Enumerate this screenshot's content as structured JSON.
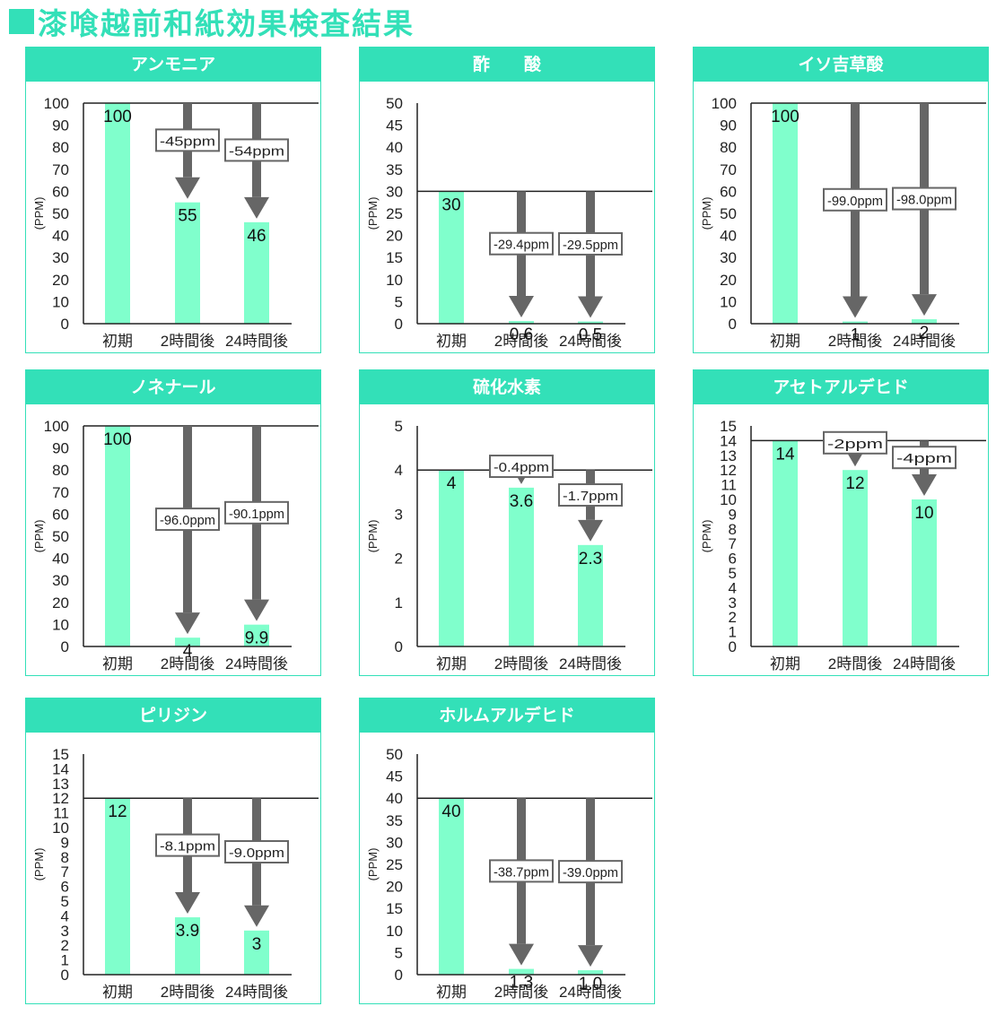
{
  "page_title": "漆喰越前和紙効果検査結果",
  "colors": {
    "accent": "#33e0b8",
    "bar": "#80ffcc",
    "arrow": "#666666",
    "label_border": "#666666"
  },
  "chart_data": [
    {
      "type": "bar",
      "title": "アンモニア",
      "ylabel": "(PPM)",
      "categories": [
        "初期",
        "2時間後",
        "24時間後"
      ],
      "values": [
        100,
        55,
        46
      ],
      "value_labels": [
        "100",
        "55",
        "46"
      ],
      "ylim": [
        0,
        100
      ],
      "yticks": [
        0,
        10,
        20,
        30,
        40,
        50,
        60,
        70,
        80,
        90,
        100
      ],
      "reduction_labels": [
        "-45ppm",
        "-54ppm"
      ]
    },
    {
      "type": "bar",
      "title": "酢　　酸",
      "ylabel": "(PPM)",
      "categories": [
        "初期",
        "2時間後",
        "24時間後"
      ],
      "values": [
        30,
        0.6,
        0.5
      ],
      "value_labels": [
        "30",
        "0.6",
        "0.5"
      ],
      "ylim": [
        0,
        50
      ],
      "yticks": [
        0,
        5,
        10,
        15,
        20,
        25,
        30,
        35,
        40,
        45,
        50
      ],
      "reduction_labels": [
        "-29.4ppm",
        "-29.5ppm"
      ]
    },
    {
      "type": "bar",
      "title": "イソ吉草酸",
      "ylabel": "(PPM)",
      "categories": [
        "初期",
        "2時間後",
        "24時間後"
      ],
      "values": [
        100,
        1,
        2
      ],
      "value_labels": [
        "100",
        "1",
        "2"
      ],
      "ylim": [
        0,
        100
      ],
      "yticks": [
        0,
        10,
        20,
        30,
        40,
        50,
        60,
        70,
        80,
        90,
        100
      ],
      "reduction_labels": [
        "-99.0ppm",
        "-98.0ppm"
      ]
    },
    {
      "type": "bar",
      "title": "ノネナール",
      "ylabel": "(PPM)",
      "categories": [
        "初期",
        "2時間後",
        "24時間後"
      ],
      "values": [
        100,
        4,
        9.9
      ],
      "value_labels": [
        "100",
        "4",
        "9.9"
      ],
      "ylim": [
        0,
        100
      ],
      "yticks": [
        0,
        10,
        20,
        30,
        40,
        50,
        60,
        70,
        80,
        90,
        100
      ],
      "reduction_labels": [
        "-96.0ppm",
        "-90.1ppm"
      ]
    },
    {
      "type": "bar",
      "title": "硫化水素",
      "ylabel": "(PPM)",
      "categories": [
        "初期",
        "2時間後",
        "24時間後"
      ],
      "values": [
        4,
        3.6,
        2.3
      ],
      "value_labels": [
        "4",
        "3.6",
        "2.3"
      ],
      "ylim": [
        0,
        5
      ],
      "yticks": [
        0,
        1,
        2,
        3,
        4,
        5
      ],
      "reduction_labels": [
        "-0.4ppm",
        "-1.7ppm"
      ]
    },
    {
      "type": "bar",
      "title": "アセトアルデヒド",
      "ylabel": "(PPM)",
      "categories": [
        "初期",
        "2時間後",
        "24時間後"
      ],
      "values": [
        14,
        12,
        10
      ],
      "value_labels": [
        "14",
        "12",
        "10"
      ],
      "ylim": [
        0,
        15
      ],
      "yticks": [
        0,
        1,
        2,
        3,
        4,
        5,
        6,
        7,
        8,
        9,
        10,
        11,
        12,
        13,
        14,
        15
      ],
      "reduction_labels": [
        "-2ppm",
        "-4ppm"
      ]
    },
    {
      "type": "bar",
      "title": "ピリジン",
      "ylabel": "(PPM)",
      "categories": [
        "初期",
        "2時間後",
        "24時間後"
      ],
      "values": [
        12,
        3.9,
        3
      ],
      "value_labels": [
        "12",
        "3.9",
        "3"
      ],
      "ylim": [
        0,
        15
      ],
      "yticks": [
        0,
        1,
        2,
        3,
        4,
        5,
        6,
        7,
        8,
        9,
        10,
        11,
        12,
        13,
        14,
        15
      ],
      "reduction_labels": [
        "-8.1ppm",
        "-9.0ppm"
      ]
    },
    {
      "type": "bar",
      "title": "ホルムアルデヒド",
      "ylabel": "(PPM)",
      "categories": [
        "初期",
        "2時間後",
        "24時間後"
      ],
      "values": [
        40,
        1.3,
        1.0
      ],
      "value_labels": [
        "40",
        "1.3",
        "1.0"
      ],
      "ylim": [
        0,
        50
      ],
      "yticks": [
        0,
        5,
        10,
        15,
        20,
        25,
        30,
        35,
        40,
        45,
        50
      ],
      "reduction_labels": [
        "-38.7ppm",
        "-39.0ppm"
      ]
    }
  ]
}
